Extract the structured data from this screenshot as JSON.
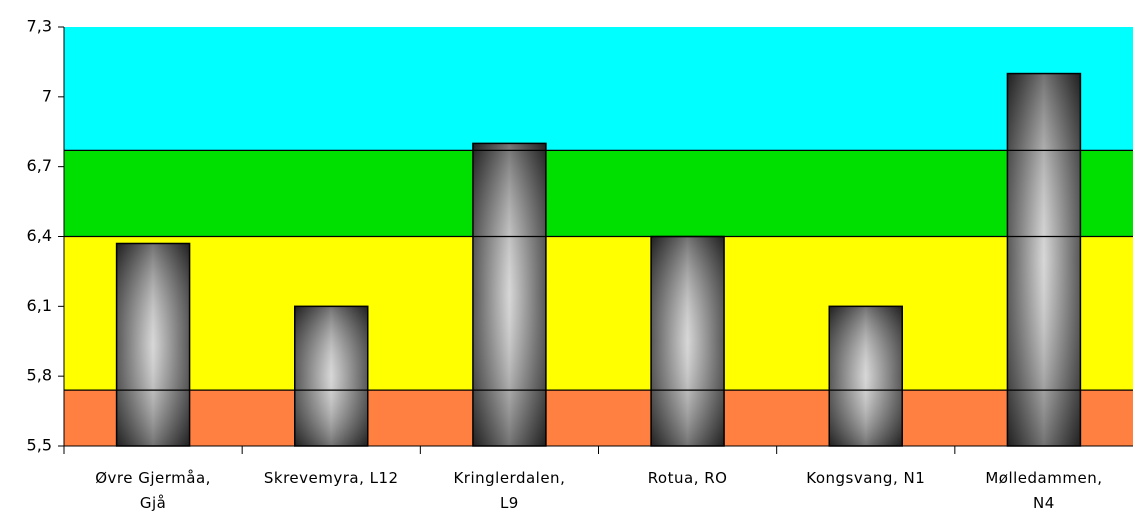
{
  "chart_data": {
    "type": "bar",
    "categories": [
      "Øvre Gjermåa,\nGjå",
      "Skrevemyra, L12",
      "Kringlerdalen,\nL9",
      "Rotua, RO",
      "Kongsvang, N1",
      "Mølledammen,\nN4"
    ],
    "values": [
      6.37,
      6.1,
      6.8,
      6.4,
      6.1,
      7.1
    ],
    "ylim": [
      5.5,
      7.3
    ],
    "yticks": [
      {
        "value": 5.5,
        "label": "5,5"
      },
      {
        "value": 5.8,
        "label": "5,8"
      },
      {
        "value": 6.1,
        "label": "6,1"
      },
      {
        "value": 6.4,
        "label": "6,4"
      },
      {
        "value": 6.7,
        "label": "6,7"
      },
      7,
      {
        "value": 7.3,
        "label": "7,3"
      }
    ],
    "bands": [
      {
        "from": 5.5,
        "to": 5.74,
        "color": "#ff8040"
      },
      {
        "from": 5.74,
        "to": 6.4,
        "color": "#ffff00"
      },
      {
        "from": 6.4,
        "to": 6.77,
        "color": "#00e000"
      },
      {
        "from": 6.77,
        "to": 7.3,
        "color": "#00ffff"
      }
    ]
  }
}
